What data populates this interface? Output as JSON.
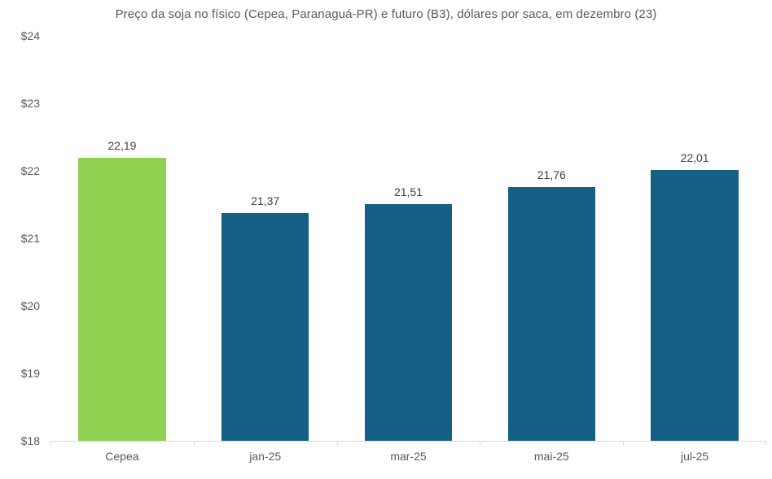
{
  "chart_data": {
    "type": "bar",
    "title": "Preço da soja no físico (Cepea, Paranaguá-PR) e futuro (B3), dólares por saca, em dezembro (23)",
    "categories": [
      "Cepea",
      "jan-25",
      "mar-25",
      "mai-25",
      "jul-25"
    ],
    "values": [
      22.19,
      21.37,
      21.51,
      21.76,
      22.01
    ],
    "value_labels": [
      "22,19",
      "21,37",
      "21,51",
      "21,76",
      "22,01"
    ],
    "bar_colors": [
      "#90d152",
      "#155f84",
      "#155f84",
      "#155f84",
      "#155f84"
    ],
    "xlabel": "",
    "ylabel": "",
    "ylim": [
      18,
      24
    ],
    "y_ticks": [
      {
        "value": 18,
        "label": "$18"
      },
      {
        "value": 19,
        "label": "$19"
      },
      {
        "value": 20,
        "label": "$20"
      },
      {
        "value": 21,
        "label": "$21"
      },
      {
        "value": 22,
        "label": "$22"
      },
      {
        "value": 23,
        "label": "$23"
      },
      {
        "value": 24,
        "label": "$24"
      }
    ],
    "grid": false,
    "legend": false,
    "legend_position": "none"
  },
  "colors": {
    "highlight_bar": "#90d152",
    "series_bar": "#155f84",
    "axis_line": "#d9d9d9",
    "title_text": "#595959",
    "axis_text": "#595959",
    "value_text": "#404040",
    "background": "#ffffff"
  }
}
